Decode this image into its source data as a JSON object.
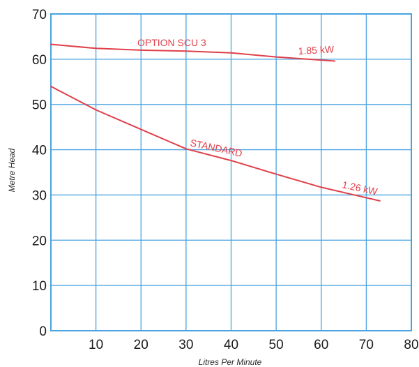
{
  "chart_data": {
    "type": "line",
    "title": "",
    "xlabel": "Litres Per Minute",
    "ylabel": "Metre Head",
    "xlim": [
      0,
      80
    ],
    "ylim": [
      0,
      70
    ],
    "xticks": [
      10,
      20,
      30,
      40,
      50,
      60,
      70,
      80
    ],
    "yticks": [
      0,
      10,
      20,
      30,
      40,
      50,
      60,
      70
    ],
    "grid": true,
    "colors": {
      "grid": "#4aa3e0",
      "series": "#e0404a"
    },
    "series": [
      {
        "name": "OPTION SCU 3",
        "power_label": "1.85 kW",
        "x": [
          0,
          10,
          20,
          30,
          40,
          50,
          63
        ],
        "y": [
          63.3,
          62.4,
          62.0,
          61.8,
          61.4,
          60.5,
          59.6
        ]
      },
      {
        "name": "STANDARD",
        "power_label": "1.26 kW",
        "x": [
          0,
          10,
          20,
          30,
          40,
          50,
          60,
          73
        ],
        "y": [
          54.0,
          48.8,
          44.5,
          40.2,
          37.6,
          34.6,
          31.7,
          28.7
        ]
      }
    ]
  }
}
